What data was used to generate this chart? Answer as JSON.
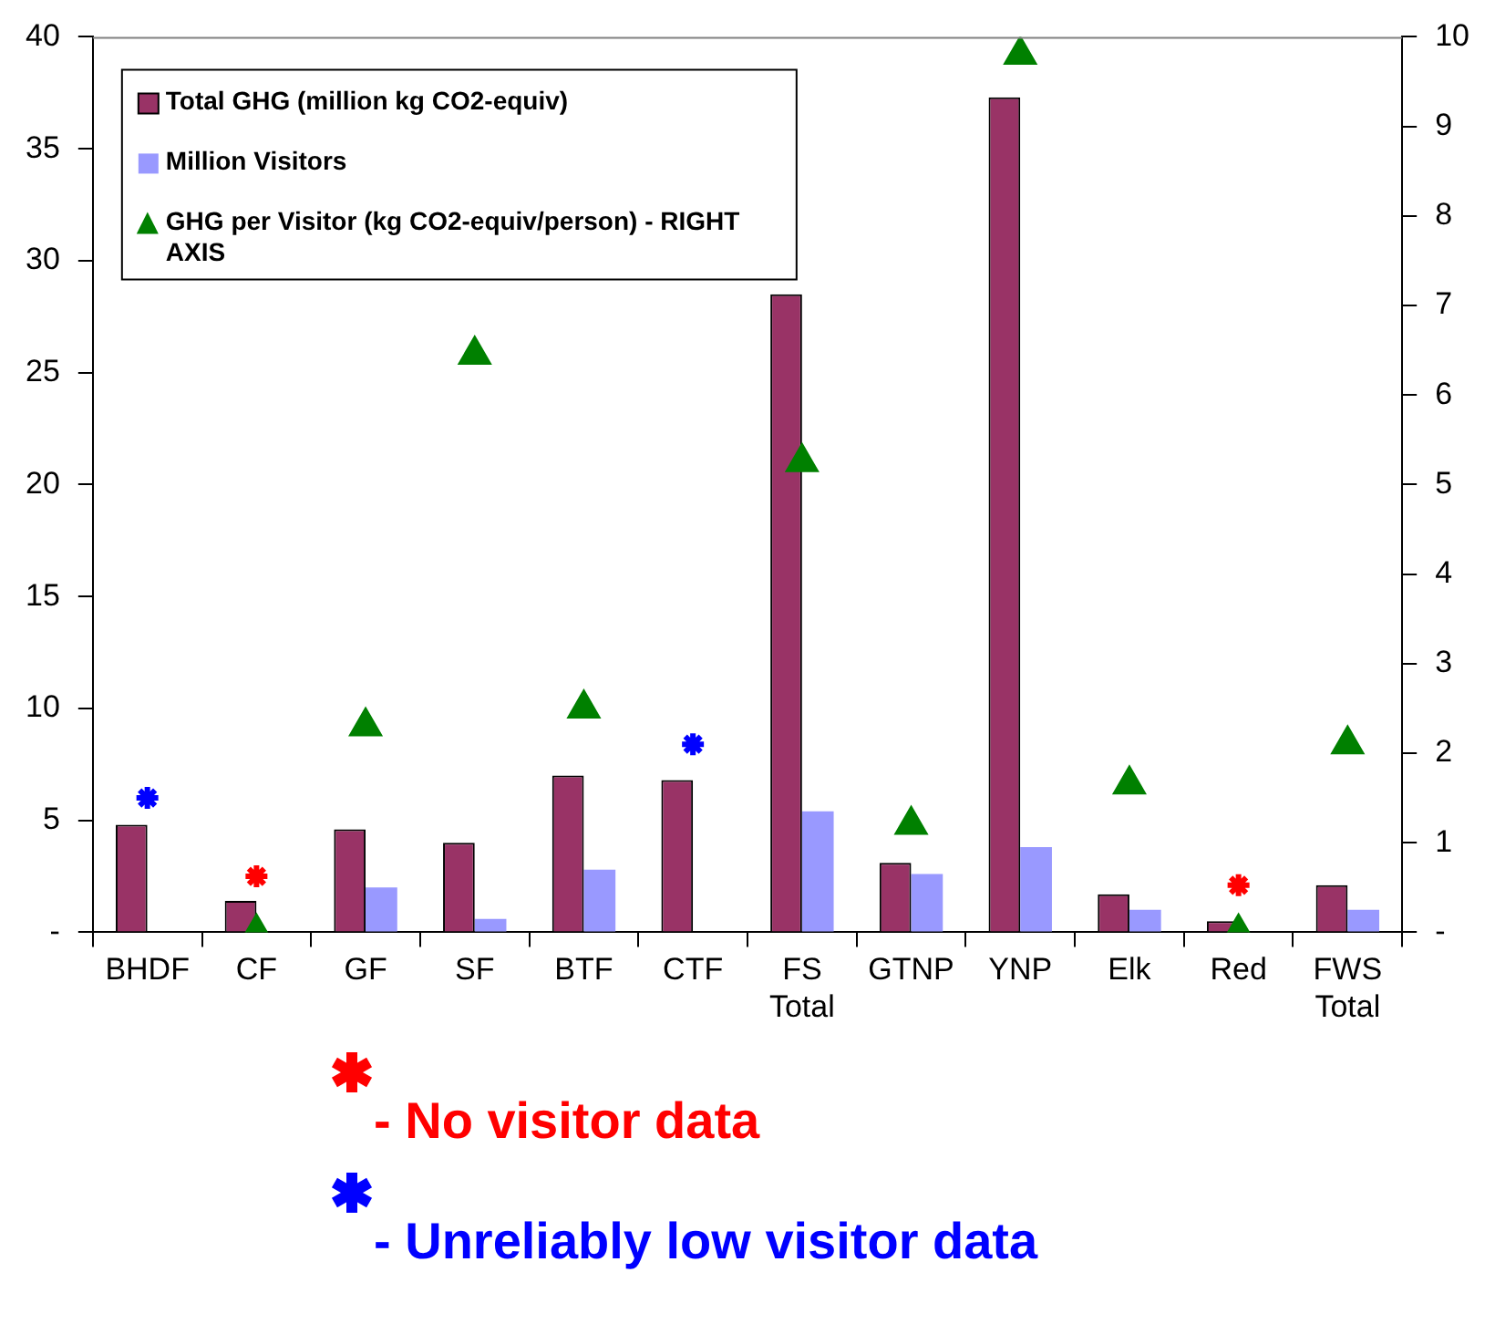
{
  "chart_data": {
    "type": "bar",
    "categories": [
      "BHDF",
      "CF",
      "GF",
      "SF",
      "BTF",
      "CTF",
      "FS Total",
      "GTNP",
      "YNP",
      "Elk",
      "Red",
      "FWS Total"
    ],
    "series": [
      {
        "name": "Total GHG (million kg CO2-equiv)",
        "color": "#993366",
        "values": [
          4.8,
          1.4,
          4.6,
          4.0,
          7.0,
          6.8,
          28.5,
          3.1,
          37.3,
          1.7,
          0.5,
          2.1
        ]
      },
      {
        "name": "Million Visitors",
        "color": "#9999ff",
        "values": [
          null,
          null,
          2.0,
          0.6,
          2.8,
          null,
          5.4,
          2.6,
          3.8,
          1.0,
          null,
          1.0
        ]
      },
      {
        "name": "GHG per Visitor (kg CO2-equiv/person) - RIGHT AXIS",
        "type": "scatter",
        "axis": "y2",
        "color": "#008000",
        "values": [
          null,
          0,
          2.3,
          6.45,
          2.5,
          null,
          5.25,
          1.2,
          9.8,
          1.65,
          0,
          2.1
        ]
      },
      {
        "name": "- No visitor data",
        "type": "scatter",
        "marker": "cross",
        "color": "#ff0000",
        "values": [
          null,
          2.5,
          null,
          null,
          null,
          null,
          null,
          null,
          null,
          null,
          2.1,
          null
        ]
      },
      {
        "name": "- Unreliably low visitor data",
        "type": "scatter",
        "marker": "cross",
        "color": "#0000ff",
        "values": [
          6,
          null,
          null,
          null,
          null,
          8.4,
          null,
          null,
          null,
          null,
          null,
          null
        ]
      }
    ],
    "ylim": [
      0,
      40
    ],
    "yticks": [
      {
        "value": 0,
        "label": "-"
      },
      5,
      10,
      15,
      20,
      25,
      30,
      35,
      40
    ],
    "y2lim": [
      0,
      10
    ],
    "y2ticks": [
      {
        "value": 0,
        "label": "-"
      },
      1,
      2,
      3,
      4,
      5,
      6,
      7,
      8,
      9,
      10
    ],
    "grid": false,
    "legend": "top left",
    "marker": "triangle"
  }
}
